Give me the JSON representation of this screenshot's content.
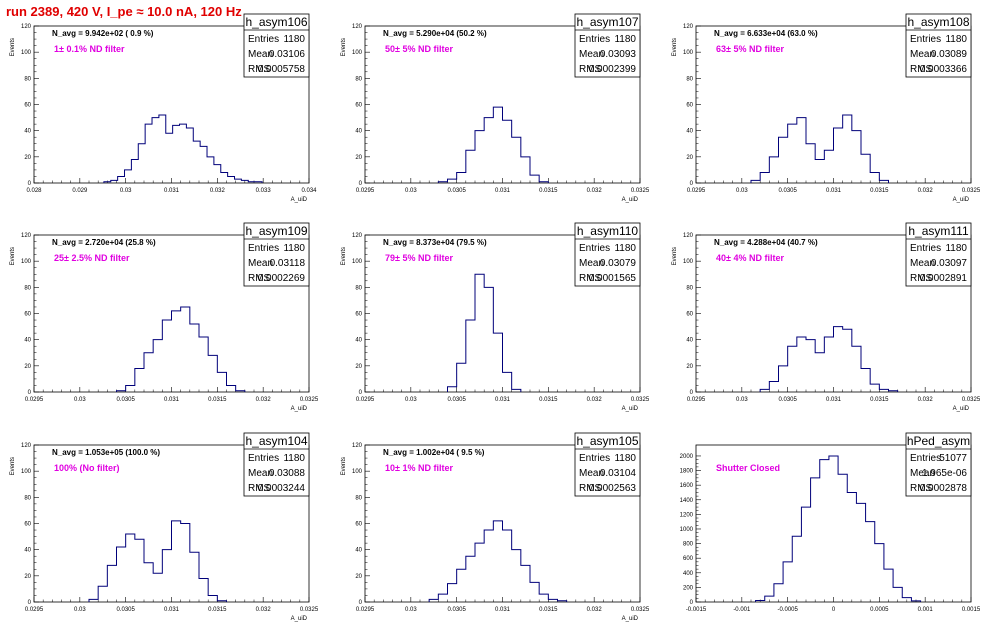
{
  "page": {
    "title": "run 2389,   420 V, I_pe ≈ 10.0 nA, 120 Hz"
  },
  "colors": {
    "title": "#e00000",
    "histogram": "#00007a",
    "label": "#e000e0"
  },
  "chart_data": [
    {
      "type": "bar",
      "name": "h_asym106",
      "navg": "N_avg = 9.942e+02 ( 0.9 %)",
      "filter": "1± 0.1% ND filter",
      "stats": {
        "entries": "1180",
        "mean": "0.03106",
        "rms": "0.0005758"
      },
      "xlabel": "A_uiD",
      "ylabel": "Events",
      "xlim": [
        0.028,
        0.034
      ],
      "ylim": [
        0,
        120
      ],
      "xticks": [
        "0.028",
        "0.029",
        "0.03",
        "0.031",
        "0.032",
        "0.033",
        "0.034"
      ],
      "yticks": [
        "0",
        "20",
        "40",
        "60",
        "80",
        "100",
        "120"
      ],
      "x": [
        0.0296,
        0.02975,
        0.0299,
        0.03005,
        0.0302,
        0.03035,
        0.0305,
        0.03065,
        0.0308,
        0.03095,
        0.0311,
        0.03125,
        0.0314,
        0.03155,
        0.0317,
        0.03185,
        0.032,
        0.03215,
        0.0323,
        0.03245,
        0.0326,
        0.03275,
        0.0329
      ],
      "values": [
        1,
        2,
        5,
        10,
        18,
        30,
        45,
        50,
        52,
        38,
        44,
        45,
        42,
        32,
        28,
        20,
        14,
        8,
        5,
        3,
        2,
        1,
        1
      ]
    },
    {
      "type": "bar",
      "name": "h_asym107",
      "navg": "N_avg = 5.290e+04 (50.2 %)",
      "filter": "50± 5% ND filter",
      "stats": {
        "entries": "1180",
        "mean": "0.03093",
        "rms": "0.0002399"
      },
      "xlabel": "A_uiD",
      "ylabel": "Events",
      "xlim": [
        0.0295,
        0.0325
      ],
      "ylim": [
        0,
        120
      ],
      "xticks": [
        "0.0295",
        "0.03",
        "0.0305",
        "0.031",
        "0.0315",
        "0.032",
        "0.0325"
      ],
      "yticks": [
        "0",
        "20",
        "40",
        "60",
        "80",
        "100",
        "120"
      ],
      "x": [
        0.03035,
        0.03045,
        0.03055,
        0.03065,
        0.03075,
        0.03085,
        0.03095,
        0.03105,
        0.03115,
        0.03125,
        0.03135,
        0.03145
      ],
      "values": [
        1,
        3,
        8,
        25,
        40,
        50,
        58,
        48,
        35,
        20,
        6,
        1
      ]
    },
    {
      "type": "bar",
      "name": "h_asym108",
      "navg": "N_avg = 6.633e+04 (63.0 %)",
      "filter": "63± 5% ND filter",
      "stats": {
        "entries": "1180",
        "mean": "0.03089",
        "rms": "0.0003366"
      },
      "xlabel": "A_uiD",
      "ylabel": "Events",
      "xlim": [
        0.0295,
        0.0325
      ],
      "ylim": [
        0,
        120
      ],
      "xticks": [
        "0.0295",
        "0.03",
        "0.0305",
        "0.031",
        "0.0315",
        "0.032",
        "0.0325"
      ],
      "yticks": [
        "0",
        "20",
        "40",
        "60",
        "80",
        "100",
        "120"
      ],
      "x": [
        0.03015,
        0.03025,
        0.03035,
        0.03045,
        0.03055,
        0.03065,
        0.03075,
        0.03085,
        0.03095,
        0.03105,
        0.03115,
        0.03125,
        0.03135,
        0.03145,
        0.03155
      ],
      "values": [
        2,
        8,
        20,
        35,
        45,
        50,
        30,
        18,
        25,
        42,
        52,
        40,
        22,
        8,
        2
      ]
    },
    {
      "type": "bar",
      "name": "h_asym109",
      "navg": "N_avg = 2.720e+04 (25.8 %)",
      "filter": "25± 2.5% ND filter",
      "stats": {
        "entries": "1180",
        "mean": "0.03118",
        "rms": "0.0002269"
      },
      "xlabel": "A_uiD",
      "ylabel": "Events",
      "xlim": [
        0.0295,
        0.0325
      ],
      "ylim": [
        0,
        120
      ],
      "xticks": [
        "0.0295",
        "0.03",
        "0.0305",
        "0.031",
        "0.0315",
        "0.032",
        "0.0325"
      ],
      "yticks": [
        "0",
        "20",
        "40",
        "60",
        "80",
        "100",
        "120"
      ],
      "x": [
        0.03045,
        0.03055,
        0.03065,
        0.03075,
        0.03085,
        0.03095,
        0.03105,
        0.03115,
        0.03125,
        0.03135,
        0.03145,
        0.03155,
        0.03165,
        0.03175
      ],
      "values": [
        1,
        5,
        18,
        30,
        40,
        55,
        62,
        65,
        52,
        42,
        28,
        15,
        5,
        1
      ]
    },
    {
      "type": "bar",
      "name": "h_asym110",
      "navg": "N_avg = 8.373e+04 (79.5 %)",
      "filter": "79± 5% ND filter",
      "stats": {
        "entries": "1180",
        "mean": "0.03079",
        "rms": "0.0001565"
      },
      "xlabel": "A_uiD",
      "ylabel": "Events",
      "xlim": [
        0.0295,
        0.0325
      ],
      "ylim": [
        0,
        120
      ],
      "xticks": [
        "0.0295",
        "0.03",
        "0.0305",
        "0.031",
        "0.0315",
        "0.032",
        "0.0325"
      ],
      "yticks": [
        "0",
        "20",
        "40",
        "60",
        "80",
        "100",
        "120"
      ],
      "x": [
        0.03045,
        0.03055,
        0.03065,
        0.03075,
        0.03085,
        0.03095,
        0.03105,
        0.03115
      ],
      "values": [
        4,
        22,
        55,
        90,
        80,
        45,
        15,
        2
      ]
    },
    {
      "type": "bar",
      "name": "h_asym111",
      "navg": "N_avg = 4.288e+04 (40.7 %)",
      "filter": "40± 4% ND filter",
      "stats": {
        "entries": "1180",
        "mean": "0.03097",
        "rms": "0.0002891"
      },
      "xlabel": "A_uiD",
      "ylabel": "Events",
      "xlim": [
        0.0295,
        0.0325
      ],
      "ylim": [
        0,
        120
      ],
      "xticks": [
        "0.0295",
        "0.03",
        "0.0305",
        "0.031",
        "0.0315",
        "0.032",
        "0.0325"
      ],
      "yticks": [
        "0",
        "20",
        "40",
        "60",
        "80",
        "100",
        "120"
      ],
      "x": [
        0.03025,
        0.03035,
        0.03045,
        0.03055,
        0.03065,
        0.03075,
        0.03085,
        0.03095,
        0.03105,
        0.03115,
        0.03125,
        0.03135,
        0.03145,
        0.03155,
        0.03165
      ],
      "values": [
        2,
        8,
        20,
        35,
        42,
        40,
        30,
        42,
        50,
        48,
        35,
        18,
        6,
        2,
        1
      ]
    },
    {
      "type": "bar",
      "name": "h_asym104",
      "navg": "N_avg = 1.053e+05 (100.0 %)",
      "filter": "100% (No filter)",
      "stats": {
        "entries": "1180",
        "mean": "0.03088",
        "rms": "0.0003244"
      },
      "xlabel": "A_uiD",
      "ylabel": "Events",
      "xlim": [
        0.0295,
        0.0325
      ],
      "ylim": [
        0,
        120
      ],
      "xticks": [
        "0.0295",
        "0.03",
        "0.0305",
        "0.031",
        "0.0315",
        "0.032",
        "0.0325"
      ],
      "yticks": [
        "0",
        "20",
        "40",
        "60",
        "80",
        "100",
        "120"
      ],
      "x": [
        0.03015,
        0.03025,
        0.03035,
        0.03045,
        0.03055,
        0.03065,
        0.03075,
        0.03085,
        0.03095,
        0.03105,
        0.03115,
        0.03125,
        0.03135,
        0.03145,
        0.03155
      ],
      "values": [
        2,
        12,
        28,
        42,
        52,
        48,
        30,
        22,
        40,
        62,
        60,
        38,
        18,
        5,
        1
      ]
    },
    {
      "type": "bar",
      "name": "h_asym105",
      "navg": "N_avg = 1.002e+04 ( 9.5 %)",
      "filter": "10± 1% ND filter",
      "stats": {
        "entries": "1180",
        "mean": "0.03104",
        "rms": "0.0002563"
      },
      "xlabel": "A_uiD",
      "ylabel": "Events",
      "xlim": [
        0.0295,
        0.0325
      ],
      "ylim": [
        0,
        120
      ],
      "xticks": [
        "0.0295",
        "0.03",
        "0.0305",
        "0.031",
        "0.0315",
        "0.032",
        "0.0325"
      ],
      "yticks": [
        "0",
        "20",
        "40",
        "60",
        "80",
        "100",
        "120"
      ],
      "x": [
        0.03025,
        0.03035,
        0.03045,
        0.03055,
        0.03065,
        0.03075,
        0.03085,
        0.03095,
        0.03105,
        0.03115,
        0.03125,
        0.03135,
        0.03145,
        0.03155,
        0.03165
      ],
      "values": [
        2,
        6,
        14,
        25,
        35,
        45,
        55,
        62,
        55,
        40,
        28,
        15,
        6,
        2,
        1
      ]
    },
    {
      "type": "bar",
      "name": "hPed_asym",
      "navg": "",
      "filter": "Shutter Closed",
      "stats": {
        "entries": "51077",
        "mean": "1.965e-06",
        "rms": "0.0002878"
      },
      "xlabel": "",
      "ylabel": "",
      "xlim": [
        -0.0015,
        0.0015
      ],
      "ylim": [
        0,
        2150
      ],
      "xticks": [
        "-0.0015",
        "-0.001",
        "-0.0005",
        "0",
        "0.0005",
        "0.001",
        "0.0015"
      ],
      "yticks": [
        "0",
        "200",
        "400",
        "600",
        "800",
        "1000",
        "1200",
        "1400",
        "1600",
        "1800",
        "2000"
      ],
      "x": [
        -0.0008,
        -0.0007,
        -0.0006,
        -0.0005,
        -0.0004,
        -0.0003,
        -0.0002,
        -0.0001,
        0,
        0.0001,
        0.0002,
        0.0003,
        0.0004,
        0.0005,
        0.0006,
        0.0007,
        0.0008,
        0.0009
      ],
      "values": [
        20,
        80,
        250,
        550,
        900,
        1300,
        1700,
        1950,
        2000,
        1750,
        1500,
        1350,
        1100,
        800,
        450,
        200,
        60,
        15
      ]
    }
  ]
}
